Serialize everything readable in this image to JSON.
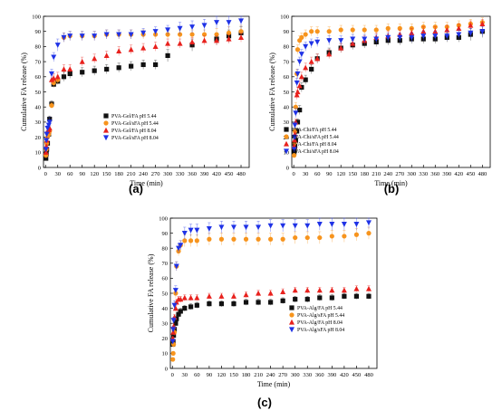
{
  "chart_data": [
    {
      "panel": "(a)",
      "type": "scatter",
      "xlabel": "Time (min)",
      "ylabel": "Cumulative FA release (%)",
      "xlim": [
        -5,
        500
      ],
      "ylim": [
        0,
        100
      ],
      "xticks": [
        0,
        30,
        60,
        90,
        120,
        150,
        180,
        210,
        240,
        270,
        300,
        330,
        360,
        390,
        420,
        450,
        480
      ],
      "yticks": [
        0,
        10,
        20,
        30,
        40,
        50,
        60,
        70,
        80,
        90,
        100
      ],
      "legend_position": "center-right",
      "series": [
        {
          "name": "PVA-Gel/FA pH 5.44",
          "color": "#111111",
          "marker": "square",
          "x": [
            1,
            2,
            3,
            5,
            8,
            10,
            15,
            20,
            30,
            45,
            60,
            90,
            120,
            150,
            180,
            210,
            240,
            270,
            300,
            360,
            420,
            450,
            480
          ],
          "y": [
            6,
            9,
            12,
            16,
            22,
            32,
            42,
            55,
            57,
            60,
            62,
            63,
            64,
            65,
            66,
            67,
            68,
            68,
            74,
            81,
            85,
            87,
            89
          ],
          "err": [
            1,
            1,
            1,
            1,
            2,
            2,
            2,
            2,
            2,
            3,
            3,
            3,
            3,
            3,
            3,
            3,
            3,
            3,
            4,
            4,
            4,
            4,
            4
          ]
        },
        {
          "name": "PVA-Gel/sFA pH 5.44",
          "color": "#f7941d",
          "marker": "circle",
          "x": [
            1,
            2,
            3,
            5,
            8,
            10,
            15,
            20,
            30,
            45,
            60,
            90,
            120,
            150,
            180,
            210,
            240,
            270,
            300,
            330,
            360,
            390,
            420,
            450,
            480
          ],
          "y": [
            8,
            12,
            16,
            20,
            22,
            24,
            41,
            56,
            58,
            86,
            87,
            87,
            87,
            88,
            88,
            88,
            88,
            88,
            88,
            88,
            88,
            88,
            88,
            89,
            90
          ],
          "err": [
            1,
            1,
            1,
            2,
            2,
            2,
            2,
            3,
            3,
            3,
            3,
            3,
            3,
            3,
            3,
            3,
            3,
            3,
            3,
            3,
            3,
            3,
            4,
            4,
            4
          ]
        },
        {
          "name": "PVA-Gel/FA pH 8.04",
          "color": "#e8211d",
          "marker": "triangle-up",
          "x": [
            1,
            2,
            3,
            5,
            8,
            10,
            15,
            20,
            30,
            45,
            60,
            90,
            120,
            150,
            180,
            210,
            240,
            270,
            300,
            330,
            360,
            390,
            420,
            450,
            480
          ],
          "y": [
            10,
            14,
            18,
            24,
            25,
            26,
            58,
            59,
            60,
            65,
            65,
            70,
            72,
            74,
            77,
            78,
            79,
            80,
            82,
            82,
            83,
            84,
            84,
            85,
            86
          ],
          "err": [
            1,
            1,
            2,
            2,
            2,
            2,
            3,
            3,
            3,
            3,
            3,
            3,
            3,
            3,
            3,
            3,
            3,
            3,
            3,
            3,
            3,
            3,
            3,
            3,
            3
          ]
        },
        {
          "name": "PVA-Gel/sFA pH 8.04",
          "color": "#1f32e6",
          "marker": "triangle-down",
          "x": [
            1,
            2,
            3,
            5,
            8,
            10,
            15,
            20,
            30,
            45,
            60,
            90,
            120,
            150,
            180,
            210,
            240,
            270,
            300,
            330,
            360,
            390,
            420,
            450,
            480
          ],
          "y": [
            12,
            18,
            22,
            26,
            28,
            30,
            62,
            73,
            81,
            86,
            87,
            87,
            87,
            88,
            88,
            88,
            89,
            90,
            91,
            92,
            93,
            94,
            96,
            96,
            97
          ],
          "err": [
            1,
            1,
            2,
            2,
            2,
            3,
            3,
            3,
            4,
            3,
            3,
            3,
            3,
            3,
            3,
            3,
            3,
            3,
            3,
            4,
            4,
            4,
            4,
            4,
            4
          ]
        }
      ]
    },
    {
      "panel": "(b)",
      "type": "scatter",
      "xlabel": "Time (min)",
      "ylabel": "Cumulative FA release (%)",
      "xlim": [
        -5,
        500
      ],
      "ylim": [
        0,
        100
      ],
      "xticks": [
        0,
        30,
        60,
        90,
        120,
        150,
        180,
        210,
        240,
        270,
        300,
        330,
        360,
        390,
        420,
        450,
        480
      ],
      "yticks": [
        0,
        10,
        20,
        30,
        40,
        50,
        60,
        70,
        80,
        90,
        100
      ],
      "legend_position": "center-right",
      "series": [
        {
          "name": "PVA-Chi/FA pH 5.44",
          "color": "#111111",
          "marker": "square",
          "x": [
            1,
            2,
            3,
            5,
            8,
            10,
            15,
            20,
            30,
            45,
            60,
            90,
            120,
            150,
            180,
            210,
            240,
            270,
            300,
            330,
            360,
            390,
            420,
            450,
            480
          ],
          "y": [
            10,
            12,
            14,
            18,
            24,
            30,
            38,
            53,
            58,
            65,
            72,
            76,
            79,
            81,
            82,
            83,
            84,
            84,
            85,
            85,
            85,
            86,
            86,
            88,
            90
          ],
          "err": [
            1,
            1,
            1,
            2,
            2,
            2,
            3,
            3,
            3,
            3,
            3,
            3,
            3,
            3,
            3,
            3,
            3,
            3,
            3,
            3,
            3,
            3,
            3,
            4,
            4
          ]
        },
        {
          "name": "PVA-Chi/sFA pH 5.44",
          "color": "#f7941d",
          "marker": "circle",
          "x": [
            1,
            2,
            3,
            5,
            8,
            10,
            15,
            20,
            30,
            45,
            60,
            90,
            120,
            150,
            180,
            210,
            240,
            270,
            300,
            330,
            360,
            390,
            420,
            450,
            480
          ],
          "y": [
            8,
            16,
            24,
            40,
            62,
            78,
            84,
            86,
            88,
            90,
            90,
            90,
            91,
            91,
            91,
            91,
            92,
            92,
            92,
            93,
            93,
            93,
            94,
            95,
            96
          ],
          "err": [
            1,
            2,
            2,
            3,
            3,
            3,
            3,
            3,
            3,
            3,
            3,
            3,
            3,
            3,
            3,
            3,
            3,
            3,
            3,
            3,
            3,
            3,
            3,
            3,
            3
          ]
        },
        {
          "name": "PVA-Chi/FA pH 8.04",
          "color": "#e8211d",
          "marker": "triangle-up",
          "x": [
            1,
            2,
            3,
            5,
            8,
            10,
            15,
            20,
            30,
            45,
            60,
            90,
            120,
            150,
            180,
            210,
            240,
            270,
            300,
            330,
            360,
            390,
            420,
            450,
            480
          ],
          "y": [
            14,
            18,
            22,
            30,
            48,
            50,
            54,
            60,
            66,
            70,
            72,
            75,
            79,
            82,
            84,
            86,
            87,
            88,
            89,
            90,
            90,
            91,
            92,
            94,
            95
          ],
          "err": [
            1,
            2,
            2,
            2,
            3,
            3,
            3,
            3,
            3,
            3,
            3,
            3,
            3,
            3,
            3,
            3,
            3,
            3,
            3,
            3,
            3,
            3,
            3,
            3,
            3
          ]
        },
        {
          "name": "PVA-Chi/sFA pH 8.04",
          "color": "#1f32e6",
          "marker": "triangle-down",
          "x": [
            1,
            2,
            3,
            5,
            8,
            10,
            15,
            20,
            30,
            45,
            60,
            90,
            120,
            150,
            180,
            210,
            240,
            270,
            300,
            330,
            360,
            390,
            420,
            450,
            480
          ],
          "y": [
            12,
            20,
            28,
            36,
            56,
            62,
            70,
            75,
            80,
            82,
            83,
            84,
            84,
            85,
            85,
            85,
            86,
            86,
            86,
            87,
            87,
            87,
            88,
            89,
            90
          ],
          "err": [
            1,
            2,
            2,
            3,
            3,
            3,
            3,
            3,
            3,
            3,
            3,
            3,
            3,
            3,
            3,
            3,
            3,
            3,
            3,
            3,
            3,
            3,
            3,
            3,
            3
          ]
        }
      ]
    },
    {
      "panel": "(c)",
      "type": "scatter",
      "xlabel": "Time (min)",
      "ylabel": "Cumulative FA release (%)",
      "xlim": [
        -5,
        500
      ],
      "ylim": [
        0,
        100
      ],
      "xticks": [
        0,
        30,
        60,
        90,
        120,
        150,
        180,
        210,
        240,
        270,
        300,
        330,
        360,
        390,
        420,
        450,
        480
      ],
      "yticks": [
        0,
        10,
        20,
        30,
        40,
        50,
        60,
        70,
        80,
        90,
        100
      ],
      "legend_position": "bottom-right",
      "series": [
        {
          "name": "PVA-Alg/FA pH 5.44",
          "color": "#111111",
          "marker": "square",
          "x": [
            1,
            2,
            3,
            5,
            8,
            10,
            15,
            20,
            30,
            45,
            60,
            90,
            120,
            150,
            180,
            210,
            240,
            270,
            300,
            330,
            360,
            390,
            420,
            450,
            480
          ],
          "y": [
            16,
            18,
            22,
            26,
            30,
            33,
            36,
            38,
            40,
            41,
            42,
            43,
            43,
            43,
            44,
            44,
            44,
            45,
            46,
            46,
            47,
            47,
            48,
            48,
            48
          ],
          "err": [
            1,
            1,
            1,
            2,
            2,
            2,
            2,
            2,
            2,
            2,
            2,
            2,
            2,
            2,
            2,
            2,
            2,
            2,
            2,
            2,
            2,
            2,
            2,
            2,
            2
          ]
        },
        {
          "name": "PVA-Alg/sFA pH 5.44",
          "color": "#f7941d",
          "marker": "circle",
          "x": [
            1,
            2,
            3,
            5,
            8,
            10,
            15,
            20,
            30,
            45,
            60,
            90,
            120,
            150,
            180,
            210,
            240,
            270,
            300,
            330,
            360,
            390,
            420,
            450,
            480
          ],
          "y": [
            6,
            10,
            16,
            24,
            50,
            68,
            78,
            82,
            85,
            85,
            85,
            86,
            86,
            86,
            86,
            86,
            86,
            86,
            87,
            87,
            87,
            88,
            88,
            89,
            90
          ],
          "err": [
            1,
            1,
            2,
            2,
            3,
            3,
            3,
            3,
            4,
            4,
            4,
            4,
            4,
            4,
            4,
            4,
            4,
            4,
            4,
            4,
            4,
            4,
            4,
            4,
            4
          ]
        },
        {
          "name": "PVA-Alg/FA pH 8.04",
          "color": "#e8211d",
          "marker": "triangle-up",
          "x": [
            1,
            2,
            3,
            5,
            8,
            10,
            15,
            20,
            30,
            45,
            60,
            90,
            120,
            150,
            180,
            210,
            240,
            270,
            300,
            330,
            360,
            390,
            420,
            450,
            480
          ],
          "y": [
            20,
            24,
            28,
            34,
            40,
            44,
            46,
            46,
            47,
            47,
            47,
            48,
            48,
            48,
            49,
            50,
            50,
            51,
            52,
            52,
            52,
            52,
            52,
            53,
            53
          ],
          "err": [
            1,
            1,
            2,
            2,
            2,
            2,
            2,
            2,
            2,
            2,
            2,
            2,
            2,
            2,
            2,
            2,
            2,
            2,
            2,
            2,
            2,
            2,
            2,
            2,
            2
          ]
        },
        {
          "name": "PVA-Alg/sFA pH 8.04",
          "color": "#1f32e6",
          "marker": "triangle-down",
          "x": [
            1,
            2,
            3,
            5,
            8,
            10,
            15,
            20,
            30,
            45,
            60,
            90,
            120,
            150,
            180,
            210,
            240,
            270,
            300,
            330,
            360,
            390,
            420,
            450,
            480
          ],
          "y": [
            18,
            26,
            32,
            42,
            52,
            68,
            80,
            82,
            90,
            92,
            92,
            93,
            94,
            94,
            94,
            94,
            95,
            95,
            95,
            95,
            96,
            96,
            96,
            96,
            97
          ],
          "err": [
            1,
            2,
            2,
            3,
            3,
            3,
            3,
            3,
            4,
            4,
            4,
            4,
            4,
            4,
            4,
            4,
            4,
            4,
            4,
            4,
            4,
            4,
            4,
            4,
            4
          ]
        }
      ]
    }
  ]
}
